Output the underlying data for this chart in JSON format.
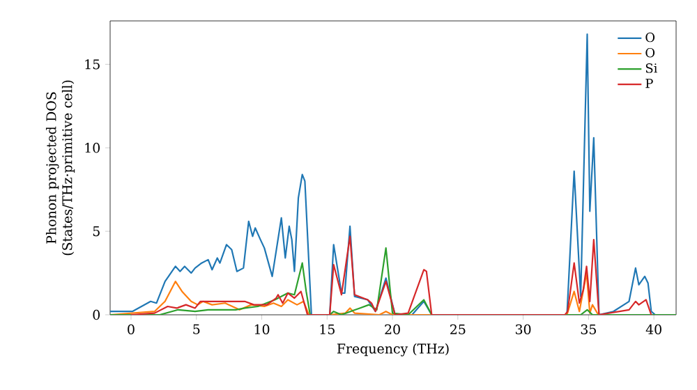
{
  "chart_data": {
    "type": "line",
    "xlabel": "Frequency (THz)",
    "ylabel": "Phonon projected DOS\n(States/THz·primitive cell)",
    "xlim": [
      -1.6,
      41.7
    ],
    "ylim": [
      0,
      17.6
    ],
    "xticks": [
      0,
      5,
      10,
      15,
      20,
      25,
      30,
      35,
      40
    ],
    "yticks": [
      0,
      5,
      10,
      15
    ],
    "legend": "top right",
    "grid": false,
    "marker": "none",
    "line_style": "solid",
    "series": [
      {
        "name": "O",
        "color": "#1f77b4",
        "x": [
          -1.6,
          0.1,
          0.8,
          1.5,
          1.95,
          2.6,
          3.4,
          3.75,
          4.1,
          4.6,
          4.9,
          5.4,
          5.9,
          6.2,
          6.6,
          6.8,
          7.3,
          7.7,
          8.1,
          8.6,
          9.0,
          9.3,
          9.5,
          9.9,
          10.2,
          10.8,
          11.1,
          11.5,
          11.8,
          12.1,
          12.3,
          12.5,
          12.8,
          13.1,
          13.3,
          13.8,
          15.2,
          15.5,
          16.1,
          16.35,
          16.75,
          17.1,
          18.1,
          18.7,
          19.5,
          20.2,
          21.5,
          22.4,
          23.0,
          33.35,
          33.9,
          34.4,
          34.9,
          35.1,
          35.4,
          35.8,
          36.9,
          38.1,
          38.6,
          38.85,
          39.3,
          39.55,
          39.8,
          40.1,
          41.7
        ],
        "values": [
          0.2,
          0.2,
          0.5,
          0.8,
          0.7,
          2.0,
          2.9,
          2.6,
          2.9,
          2.5,
          2.8,
          3.1,
          3.3,
          2.7,
          3.4,
          3.1,
          4.2,
          3.9,
          2.6,
          2.8,
          5.6,
          4.7,
          5.2,
          4.5,
          4.0,
          2.3,
          3.8,
          5.8,
          3.4,
          5.3,
          4.5,
          2.6,
          7.0,
          8.4,
          8.0,
          0.0,
          0.0,
          4.2,
          1.3,
          1.3,
          5.3,
          1.1,
          0.9,
          0.2,
          2.2,
          0.0,
          0.0,
          0.8,
          0.0,
          0.0,
          8.6,
          1.1,
          16.8,
          6.2,
          10.6,
          0.0,
          0.2,
          0.8,
          2.8,
          1.8,
          2.3,
          1.9,
          0.2,
          0.0,
          0.0
        ]
      },
      {
        "name": "O",
        "color": "#ff7f0e",
        "x": [
          -1.6,
          1.8,
          2.6,
          3.4,
          3.9,
          4.6,
          5.1,
          5.5,
          6.2,
          7.2,
          8.3,
          9.2,
          10.2,
          10.9,
          11.5,
          12.0,
          12.7,
          13.2,
          13.6,
          15.2,
          16.4,
          16.75,
          17.1,
          19.0,
          19.5,
          20.0,
          33.35,
          33.9,
          34.3,
          34.85,
          35.1,
          35.3,
          35.75,
          41.7
        ],
        "values": [
          0.0,
          0.2,
          0.8,
          2.0,
          1.4,
          0.8,
          0.6,
          0.8,
          0.6,
          0.7,
          0.3,
          0.6,
          0.5,
          0.7,
          0.5,
          0.9,
          0.6,
          0.8,
          0.0,
          0.0,
          0.1,
          0.4,
          0.1,
          0.0,
          0.2,
          0.0,
          0.0,
          1.4,
          0.2,
          2.5,
          0.1,
          0.6,
          0.0,
          0.0
        ]
      },
      {
        "name": "Si",
        "color": "#2ca02c",
        "x": [
          -1.6,
          2.2,
          3.6,
          4.9,
          5.9,
          8.0,
          8.7,
          9.7,
          11.0,
          12.0,
          12.5,
          13.1,
          13.4,
          13.7,
          15.2,
          15.5,
          16.1,
          17.5,
          18.2,
          18.8,
          19.5,
          20.0,
          21.2,
          22.4,
          23.0,
          34.4,
          34.9,
          35.3,
          41.7
        ],
        "values": [
          0.0,
          0.0,
          0.3,
          0.2,
          0.3,
          0.3,
          0.4,
          0.5,
          0.9,
          1.3,
          1.2,
          3.1,
          1.4,
          0.0,
          0.0,
          0.2,
          0.0,
          0.4,
          0.6,
          0.3,
          4.0,
          0.1,
          0.0,
          0.9,
          0.0,
          0.0,
          0.3,
          0.0,
          0.0
        ]
      },
      {
        "name": "P",
        "color": "#d62728",
        "x": [
          0.0,
          1.8,
          2.8,
          3.5,
          4.2,
          4.9,
          5.3,
          6.0,
          7.0,
          8.0,
          8.7,
          9.4,
          10.4,
          11.1,
          11.25,
          11.6,
          12.0,
          12.5,
          13.0,
          13.5,
          15.2,
          15.5,
          16.1,
          16.75,
          17.1,
          18.1,
          18.4,
          18.7,
          19.5,
          20.2,
          21.2,
          22.4,
          22.6,
          23.0,
          33.2,
          33.4,
          33.9,
          34.3,
          34.6,
          34.85,
          35.1,
          35.4,
          35.8,
          38.1,
          38.6,
          38.85,
          39.4,
          39.8
        ],
        "values": [
          0.0,
          0.1,
          0.5,
          0.4,
          0.6,
          0.4,
          0.8,
          0.8,
          0.8,
          0.8,
          0.8,
          0.6,
          0.6,
          1.0,
          1.2,
          0.7,
          1.3,
          1.0,
          1.4,
          0.0,
          0.0,
          3.0,
          1.2,
          4.7,
          1.2,
          0.9,
          0.7,
          0.2,
          2.0,
          0.0,
          0.1,
          2.7,
          2.6,
          0.0,
          0.0,
          0.2,
          3.1,
          0.7,
          1.5,
          2.9,
          0.8,
          4.5,
          0.0,
          0.3,
          0.8,
          0.6,
          0.9,
          0.0
        ]
      }
    ]
  }
}
